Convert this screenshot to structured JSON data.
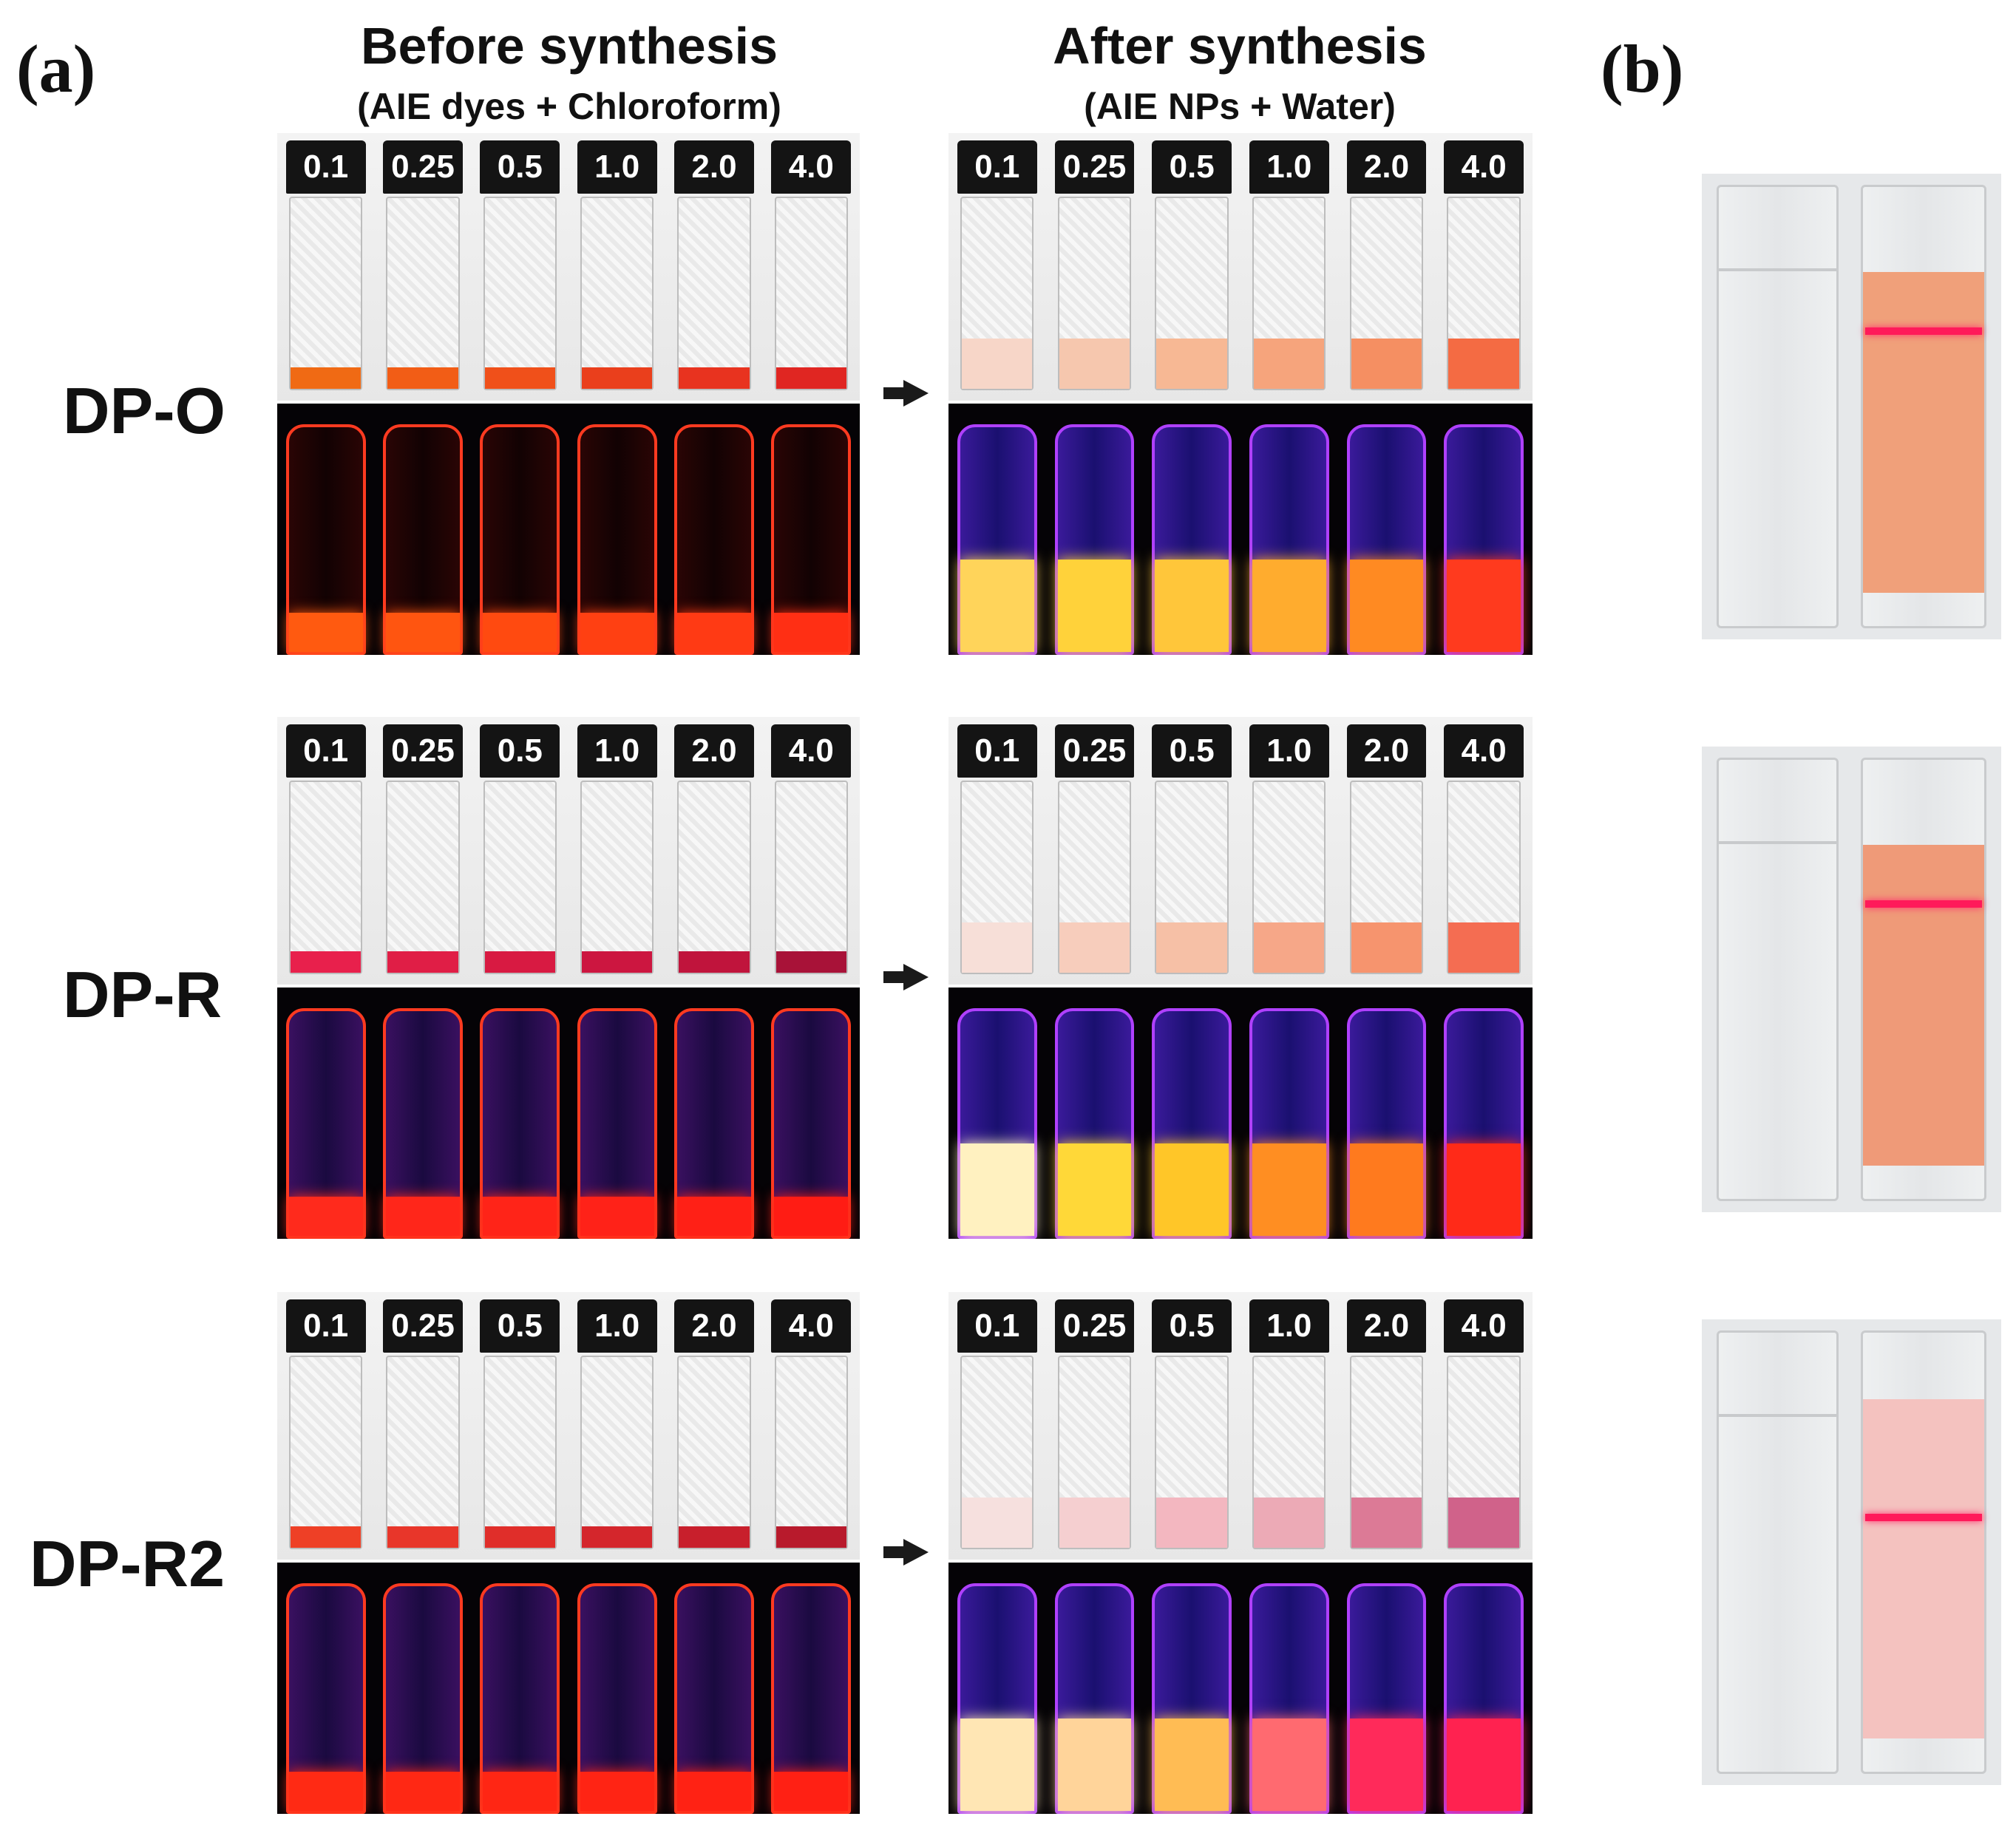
{
  "panel_a_label": "(a)",
  "panel_b_label": "(b)",
  "before": {
    "title": "Before synthesis",
    "subtitle": "(AIE dyes + Chloroform)"
  },
  "after": {
    "title": "After synthesis",
    "subtitle": "(AIE NPs + Water)"
  },
  "concentrations": [
    "0.1",
    "0.25",
    "0.5",
    "1.0",
    "2.0",
    "4.0"
  ],
  "rows": [
    {
      "name": "DP-O",
      "before_day": [
        "#f06a14",
        "#f25d16",
        "#f0501a",
        "#ea3f1c",
        "#e8331f",
        "#e02622"
      ],
      "after_day": [
        "#f7d6c8",
        "#f6c7ae",
        "#f7b894",
        "#f6a47c",
        "#f58f62",
        "#f46b43"
      ],
      "before_uv": [
        "#ff5a10",
        "#ff5510",
        "#ff4a10",
        "#ff4012",
        "#ff3a14",
        "#ff2f14"
      ],
      "after_uv": [
        "#ffd45a",
        "#ffd23a",
        "#ffc63a",
        "#ffac2e",
        "#ff8a22",
        "#ff3a1e"
      ]
    },
    {
      "name": "DP-R",
      "before_day": [
        "#e8204c",
        "#e01e46",
        "#d81a42",
        "#cc1640",
        "#c0143c",
        "#a81238"
      ],
      "after_day": [
        "#f7dfd8",
        "#f7cdbc",
        "#f6c0a6",
        "#f6a788",
        "#f6946e",
        "#f46d52"
      ],
      "before_uv": [
        "#ff2a1c",
        "#ff261a",
        "#ff2418",
        "#ff2218",
        "#ff2016",
        "#ff1c14"
      ],
      "after_uv": [
        "#fff1c0",
        "#ffd838",
        "#ffc628",
        "#ff8e22",
        "#ff7a1e",
        "#ff2a18"
      ]
    },
    {
      "name": "DP-R2",
      "before_day": [
        "#ee4026",
        "#e8362a",
        "#e02e2a",
        "#d4262c",
        "#c81f2c",
        "#b81a2c"
      ],
      "after_day": [
        "#f6e0de",
        "#f5cfd0",
        "#f3b7c0",
        "#ecaab6",
        "#dc7a96",
        "#d0628a"
      ],
      "before_uv": [
        "#ff2a14",
        "#ff2814",
        "#ff2614",
        "#ff2414",
        "#ff2214",
        "#ff2014"
      ],
      "after_uv": [
        "#ffe6b4",
        "#ffd49a",
        "#ffbc54",
        "#ff6a70",
        "#ff2a5a",
        "#ff2250"
      ]
    }
  ],
  "cuvettes": [
    {
      "liquid": "#f0a07a"
    },
    {
      "liquid": "#ef9a78"
    },
    {
      "liquid": "#f4c2bf"
    }
  ]
}
